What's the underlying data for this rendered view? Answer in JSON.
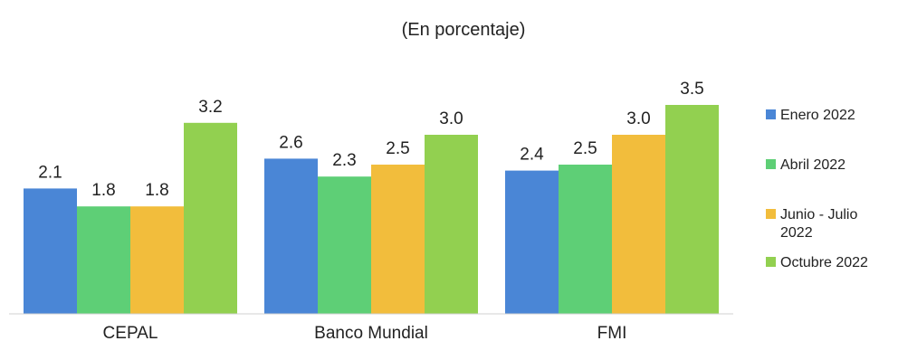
{
  "chart_data": {
    "type": "bar",
    "subtitle": "(En porcentaje)",
    "categories": [
      "CEPAL",
      "Banco Mundial",
      "FMI"
    ],
    "series": [
      {
        "name": "Enero 2022",
        "color": "#4a86d6",
        "values": [
          2.1,
          2.6,
          2.4
        ]
      },
      {
        "name": "Abril 2022",
        "color": "#5ecf76",
        "values": [
          1.8,
          2.3,
          2.5
        ]
      },
      {
        "name": "Junio - Julio 2022",
        "legend_lines": [
          "Junio - Julio",
          "2022"
        ],
        "color": "#f2bd3c",
        "values": [
          1.8,
          2.5,
          3.0
        ]
      },
      {
        "name": "Octubre 2022",
        "color": "#92d050",
        "values": [
          3.2,
          3.0,
          3.5
        ]
      }
    ],
    "ylim": [
      0,
      3.5
    ],
    "grid": false,
    "legend_position": "right",
    "xlabel": "",
    "ylabel": ""
  }
}
